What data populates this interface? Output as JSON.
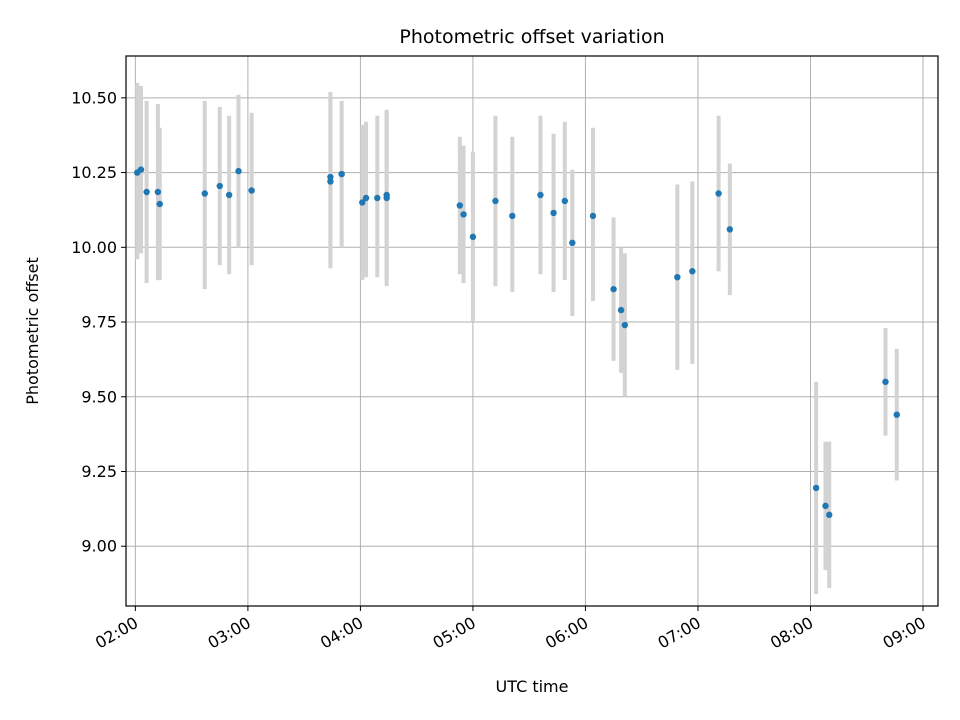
{
  "chart_data": {
    "type": "scatter",
    "title": "Photometric offset variation",
    "xlabel": "UTC time",
    "ylabel": "Photometric offset",
    "x_tick_labels": [
      "02:00",
      "03:00",
      "04:00",
      "05:00",
      "06:00",
      "07:00",
      "08:00",
      "09:00"
    ],
    "y_tick_labels": [
      "9.00",
      "9.25",
      "9.50",
      "9.75",
      "10.00",
      "10.25",
      "10.50"
    ],
    "y_ticks": [
      9.0,
      9.25,
      9.5,
      9.75,
      10.0,
      10.25,
      10.5
    ],
    "xlim": [
      "01:55",
      "09:08"
    ],
    "ylim": [
      8.8,
      10.64
    ],
    "grid": true,
    "colors": {
      "point": "#1f77b4",
      "errorbar": "#d3d3d3",
      "grid": "#b0b0b0"
    },
    "points": [
      {
        "time": "02:01",
        "y": 10.25,
        "ylo": 9.96,
        "yhi": 10.55
      },
      {
        "time": "02:03",
        "y": 10.26,
        "ylo": 9.98,
        "yhi": 10.54
      },
      {
        "time": "02:06",
        "y": 10.185,
        "ylo": 9.88,
        "yhi": 10.49
      },
      {
        "time": "02:12",
        "y": 10.185,
        "ylo": 9.89,
        "yhi": 10.48
      },
      {
        "time": "02:13",
        "y": 10.145,
        "ylo": 9.89,
        "yhi": 10.4
      },
      {
        "time": "02:37",
        "y": 10.18,
        "ylo": 9.86,
        "yhi": 10.49
      },
      {
        "time": "02:45",
        "y": 10.205,
        "ylo": 9.94,
        "yhi": 10.47
      },
      {
        "time": "02:50",
        "y": 10.175,
        "ylo": 9.91,
        "yhi": 10.44
      },
      {
        "time": "02:55",
        "y": 10.255,
        "ylo": 10.0,
        "yhi": 10.51
      },
      {
        "time": "03:02",
        "y": 10.19,
        "ylo": 9.94,
        "yhi": 10.45
      },
      {
        "time": "03:44",
        "y": 10.235,
        "ylo": 9.93,
        "yhi": 10.52
      },
      {
        "time": "03:44",
        "y": 10.22,
        "ylo": 9.95,
        "yhi": 10.5
      },
      {
        "time": "03:50",
        "y": 10.245,
        "ylo": 10.0,
        "yhi": 10.49
      },
      {
        "time": "04:01",
        "y": 10.15,
        "ylo": 9.89,
        "yhi": 10.41
      },
      {
        "time": "04:03",
        "y": 10.165,
        "ylo": 9.9,
        "yhi": 10.42
      },
      {
        "time": "04:09",
        "y": 10.165,
        "ylo": 9.9,
        "yhi": 10.44
      },
      {
        "time": "04:14",
        "y": 10.175,
        "ylo": 9.89,
        "yhi": 10.46
      },
      {
        "time": "04:14",
        "y": 10.165,
        "ylo": 9.87,
        "yhi": 10.45
      },
      {
        "time": "04:53",
        "y": 10.14,
        "ylo": 9.91,
        "yhi": 10.37
      },
      {
        "time": "04:55",
        "y": 10.11,
        "ylo": 9.88,
        "yhi": 10.34
      },
      {
        "time": "05:00",
        "y": 10.035,
        "ylo": 9.75,
        "yhi": 10.32
      },
      {
        "time": "05:12",
        "y": 10.155,
        "ylo": 9.87,
        "yhi": 10.44
      },
      {
        "time": "05:21",
        "y": 10.105,
        "ylo": 9.85,
        "yhi": 10.37
      },
      {
        "time": "05:36",
        "y": 10.175,
        "ylo": 9.91,
        "yhi": 10.44
      },
      {
        "time": "05:43",
        "y": 10.115,
        "ylo": 9.85,
        "yhi": 10.38
      },
      {
        "time": "05:49",
        "y": 10.155,
        "ylo": 9.89,
        "yhi": 10.42
      },
      {
        "time": "05:53",
        "y": 10.015,
        "ylo": 9.77,
        "yhi": 10.26
      },
      {
        "time": "06:04",
        "y": 10.105,
        "ylo": 9.82,
        "yhi": 10.4
      },
      {
        "time": "06:15",
        "y": 9.86,
        "ylo": 9.62,
        "yhi": 10.1
      },
      {
        "time": "06:19",
        "y": 9.79,
        "ylo": 9.58,
        "yhi": 10.0
      },
      {
        "time": "06:21",
        "y": 9.74,
        "ylo": 9.5,
        "yhi": 9.98
      },
      {
        "time": "06:49",
        "y": 9.9,
        "ylo": 9.59,
        "yhi": 10.21
      },
      {
        "time": "06:57",
        "y": 9.92,
        "ylo": 9.61,
        "yhi": 10.22
      },
      {
        "time": "07:11",
        "y": 10.18,
        "ylo": 9.92,
        "yhi": 10.44
      },
      {
        "time": "07:17",
        "y": 10.06,
        "ylo": 9.84,
        "yhi": 10.28
      },
      {
        "time": "08:03",
        "y": 9.195,
        "ylo": 8.84,
        "yhi": 9.55
      },
      {
        "time": "08:08",
        "y": 9.135,
        "ylo": 8.92,
        "yhi": 9.35
      },
      {
        "time": "08:10",
        "y": 9.105,
        "ylo": 8.86,
        "yhi": 9.35
      },
      {
        "time": "08:40",
        "y": 9.55,
        "ylo": 9.37,
        "yhi": 9.73
      },
      {
        "time": "08:46",
        "y": 9.44,
        "ylo": 9.22,
        "yhi": 9.66
      }
    ]
  }
}
